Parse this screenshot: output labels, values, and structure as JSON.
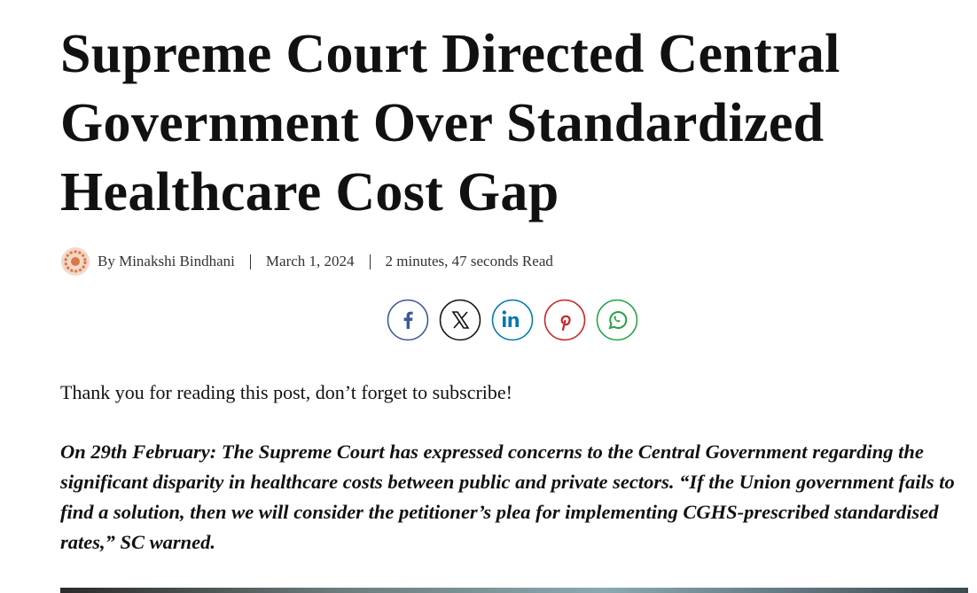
{
  "article": {
    "title": "Supreme Court Directed Central Government Over Standardized Healthcare Cost Gap",
    "author": "By Minakshi Bindhani",
    "date": "March 1, 2024",
    "read_time": "2 minutes, 47 seconds Read",
    "intro": "Thank you for reading this post, don’t forget to subscribe!",
    "lead": "On 29th February: The Supreme Court has expressed concerns to the Central Government regarding the significant disparity in healthcare costs between public and private sectors. “If the Union government fails to find a solution, then we will consider the petitioner’s plea for implementing CGHS-prescribed standardised rates,” SC warned."
  }
}
